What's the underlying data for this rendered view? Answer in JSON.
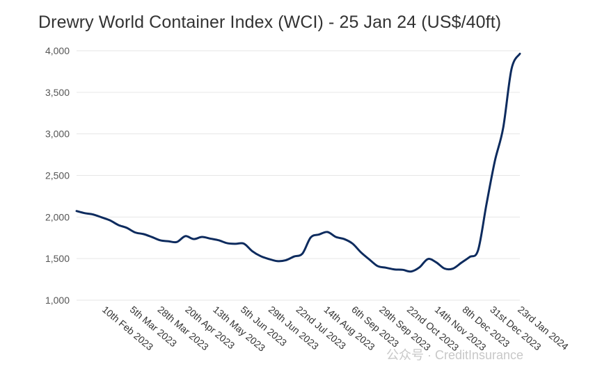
{
  "chart_data": {
    "type": "line",
    "title": "Drewry World Container Index (WCI) - 25 Jan 24 (US$/40ft)",
    "xlabel": "",
    "ylabel": "",
    "ylim": [
      1000,
      4000
    ],
    "yticks": [
      "4,000",
      "3,500",
      "3,000",
      "2,500",
      "2,000",
      "1,500",
      "1,000"
    ],
    "ytick_values": [
      4000,
      3500,
      3000,
      2500,
      2000,
      1500,
      1000
    ],
    "grid": true,
    "xtick_labels": [
      "10th Feb 2023",
      "5th Mar 2023",
      "28th Mar 2023",
      "20th Apr 2023",
      "13th May 2023",
      "5th Jun 2023",
      "29th Jun 2023",
      "22nd Jul 2023",
      "14th Aug 2023",
      "6th Sep 2023",
      "29th Sep 2023",
      "22nd Oct 2023",
      "14th Nov 2023",
      "8th Dec 2023",
      "31st Dec 2023",
      "23rd Jan 2024"
    ],
    "series": [
      {
        "color": "#0d2b5e",
        "points": [
          [
            "2023-01-19",
            2072
          ],
          [
            "2023-01-26",
            2046
          ],
          [
            "2023-02-02",
            2030
          ],
          [
            "2023-02-09",
            1996
          ],
          [
            "2023-02-16",
            1960
          ],
          [
            "2023-02-23",
            1904
          ],
          [
            "2023-03-02",
            1870
          ],
          [
            "2023-03-09",
            1815
          ],
          [
            "2023-03-16",
            1795
          ],
          [
            "2023-03-23",
            1760
          ],
          [
            "2023-03-30",
            1720
          ],
          [
            "2023-04-06",
            1708
          ],
          [
            "2023-04-13",
            1700
          ],
          [
            "2023-04-20",
            1770
          ],
          [
            "2023-04-27",
            1735
          ],
          [
            "2023-05-04",
            1760
          ],
          [
            "2023-05-11",
            1740
          ],
          [
            "2023-05-18",
            1720
          ],
          [
            "2023-05-25",
            1686
          ],
          [
            "2023-06-01",
            1678
          ],
          [
            "2023-06-08",
            1680
          ],
          [
            "2023-06-15",
            1590
          ],
          [
            "2023-06-22",
            1530
          ],
          [
            "2023-06-29",
            1495
          ],
          [
            "2023-07-06",
            1470
          ],
          [
            "2023-07-13",
            1480
          ],
          [
            "2023-07-20",
            1525
          ],
          [
            "2023-07-27",
            1560
          ],
          [
            "2023-08-03",
            1755
          ],
          [
            "2023-08-10",
            1790
          ],
          [
            "2023-08-17",
            1820
          ],
          [
            "2023-08-24",
            1760
          ],
          [
            "2023-08-31",
            1735
          ],
          [
            "2023-09-07",
            1680
          ],
          [
            "2023-09-14",
            1575
          ],
          [
            "2023-09-21",
            1490
          ],
          [
            "2023-09-28",
            1410
          ],
          [
            "2023-10-05",
            1390
          ],
          [
            "2023-10-12",
            1370
          ],
          [
            "2023-10-19",
            1365
          ],
          [
            "2023-10-26",
            1345
          ],
          [
            "2023-11-02",
            1395
          ],
          [
            "2023-11-09",
            1495
          ],
          [
            "2023-11-16",
            1455
          ],
          [
            "2023-11-23",
            1380
          ],
          [
            "2023-11-30",
            1380
          ],
          [
            "2023-12-07",
            1450
          ],
          [
            "2023-12-14",
            1520
          ],
          [
            "2023-12-21",
            1600
          ],
          [
            "2023-12-28",
            2150
          ],
          [
            "2024-01-04",
            2670
          ],
          [
            "2024-01-11",
            3070
          ],
          [
            "2024-01-18",
            3780
          ],
          [
            "2024-01-25",
            3964
          ]
        ]
      }
    ]
  },
  "watermark": "公众号 · CreditInsurance"
}
